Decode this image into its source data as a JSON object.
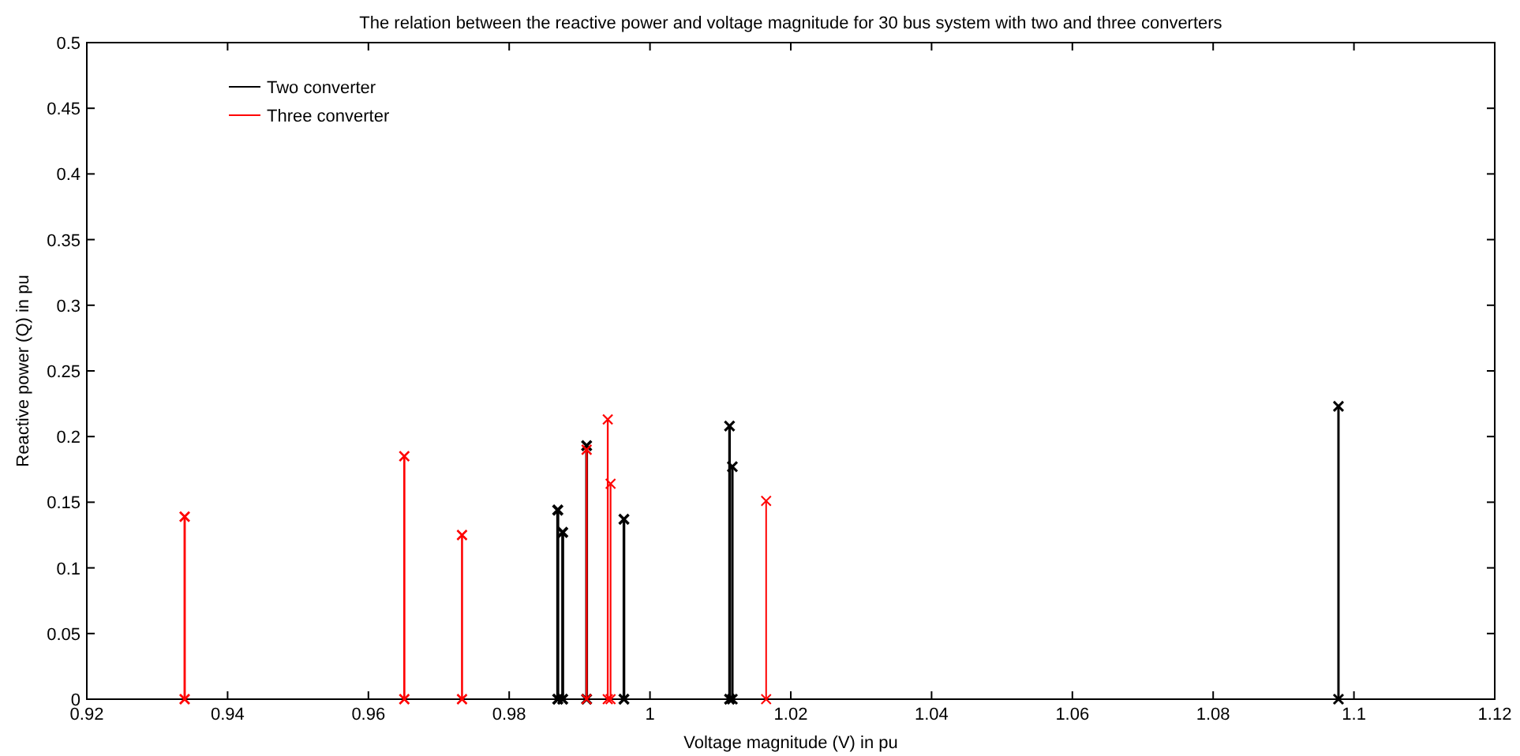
{
  "chart_data": {
    "type": "line",
    "title": "The relation between the reactive power and voltage magnitude for 30 bus system with two and three converters",
    "xlabel": "Voltage magnitude (V) in pu",
    "ylabel": "Reactive power (Q) in pu",
    "xlim": [
      0.92,
      1.12
    ],
    "xticks": [
      0.92,
      0.94,
      0.96,
      0.98,
      1,
      1.02,
      1.04,
      1.06,
      1.08,
      1.1,
      1.12
    ],
    "ylim": [
      0,
      0.5
    ],
    "yticks": [
      0,
      0.05,
      0.1,
      0.15,
      0.2,
      0.25,
      0.3,
      0.35,
      0.4,
      0.45,
      0.5
    ],
    "legend": "top left",
    "marker": "cross",
    "line_style": "solid",
    "series": [
      {
        "name": "Two converter",
        "color": "#000000",
        "x": [
          0.9869,
          0.9869
        ],
        "values": [
          0,
          0.144
        ]
      },
      {
        "color": "#000000",
        "x": [
          0.9876,
          0.9876
        ],
        "values": [
          0,
          0.127
        ]
      },
      {
        "color": "#000000",
        "x": [
          0.991,
          0.991
        ],
        "values": [
          0,
          0.193
        ]
      },
      {
        "color": "#000000",
        "x": [
          0.9963,
          0.9963
        ],
        "values": [
          0,
          0.137
        ]
      },
      {
        "color": "#000000",
        "x": [
          1.0113,
          1.0113
        ],
        "values": [
          0,
          0.208
        ]
      },
      {
        "color": "#000000",
        "x": [
          1.0117,
          1.0117
        ],
        "values": [
          0,
          0.177
        ]
      },
      {
        "color": "#000000",
        "x": [
          1.0978,
          1.0978
        ],
        "values": [
          0,
          0.223
        ]
      },
      {
        "name": "Three converter",
        "color": "#ff0000",
        "x": [
          0.9339,
          0.9339
        ],
        "values": [
          0,
          0.139
        ]
      },
      {
        "color": "#ff0000",
        "x": [
          0.9651,
          0.9651
        ],
        "values": [
          0,
          0.185
        ]
      },
      {
        "color": "#ff0000",
        "x": [
          0.9733,
          0.9733
        ],
        "values": [
          0,
          0.125
        ]
      },
      {
        "color": "#ff0000",
        "x": [
          0.991,
          0.991
        ],
        "values": [
          0,
          0.19
        ]
      },
      {
        "color": "#ff0000",
        "x": [
          0.994,
          0.994
        ],
        "values": [
          0,
          0.213
        ]
      },
      {
        "color": "#ff0000",
        "x": [
          0.9944,
          0.9944
        ],
        "values": [
          0,
          0.164
        ]
      },
      {
        "color": "#ff0000",
        "x": [
          1.0165,
          1.0165
        ],
        "values": [
          0,
          0.151
        ]
      }
    ]
  }
}
